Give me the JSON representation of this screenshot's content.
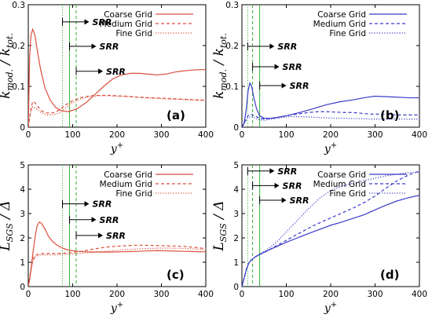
{
  "chart_data": [
    {
      "id": "a",
      "type": "line",
      "panel_label": "(a)",
      "xlabel": "y",
      "xlabel_sup": "+",
      "ylabel_main": "k",
      "ylabel_sub": "mod.",
      "ylabel_denom": "k",
      "ylabel_denom_sub": "tot.",
      "xlim": [
        0,
        400
      ],
      "ylim": [
        0,
        0.3
      ],
      "xticks": [
        0,
        100,
        200,
        300,
        400
      ],
      "yticks": [
        0,
        0.1,
        0.2,
        0.3
      ],
      "xtick_labels": [
        "0",
        "100",
        "200",
        "300",
        "400"
      ],
      "ytick_labels": [
        "0",
        "0.1",
        "0.2",
        "0.3"
      ],
      "grid": false,
      "legend": "top-right",
      "color": "#d94f3c",
      "series": [
        {
          "name": "Coarse Grid",
          "dash": "solid",
          "x": [
            0,
            3,
            6,
            10,
            15,
            20,
            28,
            38,
            50,
            62,
            75,
            90,
            110,
            130,
            150,
            170,
            190,
            210,
            230,
            250,
            270,
            290,
            310,
            330,
            350,
            370,
            390,
            400
          ],
          "y": [
            0.0,
            0.17,
            0.225,
            0.24,
            0.225,
            0.19,
            0.14,
            0.095,
            0.065,
            0.048,
            0.04,
            0.038,
            0.045,
            0.06,
            0.08,
            0.1,
            0.118,
            0.128,
            0.132,
            0.132,
            0.13,
            0.128,
            0.13,
            0.135,
            0.138,
            0.14,
            0.141,
            0.141
          ]
        },
        {
          "name": "Medium Grid",
          "dash": "dashed",
          "x": [
            0,
            5,
            10,
            15,
            20,
            30,
            40,
            55,
            70,
            85,
            100,
            120,
            140,
            160,
            180,
            200,
            220,
            240,
            260,
            280,
            300,
            320,
            340,
            360,
            380,
            400
          ],
          "y": [
            0.0,
            0.04,
            0.063,
            0.06,
            0.052,
            0.04,
            0.035,
            0.035,
            0.042,
            0.055,
            0.065,
            0.073,
            0.077,
            0.078,
            0.078,
            0.077,
            0.076,
            0.074,
            0.073,
            0.072,
            0.071,
            0.07,
            0.069,
            0.068,
            0.067,
            0.066
          ]
        },
        {
          "name": "Fine Grid",
          "dash": "dotted",
          "x": [
            0,
            5,
            10,
            15,
            20,
            30,
            40,
            55,
            70,
            85,
            100,
            120,
            140,
            160,
            180,
            200,
            220,
            240,
            260,
            280,
            300,
            320,
            340,
            360,
            380,
            400
          ],
          "y": [
            0.0,
            0.035,
            0.05,
            0.048,
            0.043,
            0.035,
            0.03,
            0.03,
            0.035,
            0.048,
            0.06,
            0.07,
            0.075,
            0.077,
            0.077,
            0.076,
            0.075,
            0.074,
            0.072,
            0.071,
            0.07,
            0.069,
            0.068,
            0.067,
            0.066,
            0.065
          ]
        }
      ],
      "vlines": [
        {
          "x": 77,
          "style": "dotted"
        },
        {
          "x": 93,
          "style": "solid"
        },
        {
          "x": 108,
          "style": "dashed"
        }
      ],
      "annotations": [
        {
          "text": "SRR",
          "arrow_from_x": 77,
          "y": 0.258
        },
        {
          "text": "SRR",
          "arrow_from_x": 93,
          "y": 0.198
        },
        {
          "text": "SRR",
          "arrow_from_x": 108,
          "y": 0.137
        }
      ]
    },
    {
      "id": "b",
      "type": "line",
      "panel_label": "(b)",
      "xlabel": "y",
      "xlabel_sup": "+",
      "ylabel_main": "k",
      "ylabel_sub": "mod.",
      "ylabel_denom": "k",
      "ylabel_denom_sub": "tot.",
      "xlim": [
        0,
        400
      ],
      "ylim": [
        0,
        0.3
      ],
      "xticks": [
        0,
        100,
        200,
        300,
        400
      ],
      "yticks": [
        0,
        0.1,
        0.2,
        0.3
      ],
      "xtick_labels": [
        "0",
        "100",
        "200",
        "300",
        "400"
      ],
      "ytick_labels": [
        "0",
        "0.1",
        "0.2",
        "0.3"
      ],
      "grid": false,
      "legend": "top-right",
      "color": "#3a3ac8",
      "series": [
        {
          "name": "Coarse Grid",
          "dash": "solid",
          "x": [
            0,
            5,
            10,
            14,
            18,
            22,
            27,
            33,
            40,
            50,
            65,
            80,
            100,
            130,
            160,
            190,
            220,
            250,
            280,
            300,
            320,
            340,
            360,
            380,
            400
          ],
          "y": [
            0.0,
            0.01,
            0.045,
            0.09,
            0.108,
            0.1,
            0.072,
            0.045,
            0.028,
            0.022,
            0.022,
            0.024,
            0.028,
            0.036,
            0.045,
            0.055,
            0.062,
            0.067,
            0.073,
            0.076,
            0.075,
            0.074,
            0.073,
            0.072,
            0.072
          ]
        },
        {
          "name": "Medium Grid",
          "dash": "dashed",
          "x": [
            0,
            5,
            10,
            15,
            20,
            25,
            30,
            40,
            50,
            70,
            90,
            110,
            130,
            150,
            170,
            190,
            210,
            230,
            250,
            270,
            290,
            310,
            330,
            350,
            370,
            400
          ],
          "y": [
            0.0,
            0.01,
            0.022,
            0.03,
            0.032,
            0.03,
            0.027,
            0.022,
            0.02,
            0.022,
            0.026,
            0.03,
            0.033,
            0.036,
            0.038,
            0.038,
            0.037,
            0.036,
            0.036,
            0.034,
            0.032,
            0.032,
            0.031,
            0.03,
            0.03,
            0.03
          ]
        },
        {
          "name": "Fine Grid",
          "dash": "dotted",
          "x": [
            0,
            5,
            10,
            15,
            20,
            25,
            30,
            40,
            50,
            70,
            90,
            110,
            130,
            150,
            170,
            190,
            210,
            230,
            250,
            270,
            290,
            310,
            330,
            350,
            370,
            400
          ],
          "y": [
            0.0,
            0.008,
            0.018,
            0.024,
            0.026,
            0.025,
            0.022,
            0.018,
            0.017,
            0.02,
            0.024,
            0.026,
            0.026,
            0.025,
            0.024,
            0.023,
            0.022,
            0.022,
            0.021,
            0.021,
            0.02,
            0.02,
            0.02,
            0.02,
            0.02,
            0.02
          ]
        }
      ],
      "vlines": [
        {
          "x": 13,
          "style": "dotted"
        },
        {
          "x": 24,
          "style": "dashed"
        },
        {
          "x": 40,
          "style": "solid"
        }
      ],
      "annotations": [
        {
          "text": "SRR",
          "arrow_from_x": 13,
          "y": 0.198
        },
        {
          "text": "SRR",
          "arrow_from_x": 24,
          "y": 0.148
        },
        {
          "text": "SRR",
          "arrow_from_x": 40,
          "y": 0.102
        }
      ]
    },
    {
      "id": "c",
      "type": "line",
      "panel_label": "(c)",
      "xlabel": "y",
      "xlabel_sup": "+",
      "ylabel_main": "L",
      "ylabel_sub": "SGS",
      "ylabel_denom": "Δ",
      "ylabel_denom_sub": "",
      "xlim": [
        0,
        400
      ],
      "ylim": [
        0,
        5
      ],
      "xticks": [
        0,
        100,
        200,
        300,
        400
      ],
      "yticks": [
        0,
        1,
        2,
        3,
        4,
        5
      ],
      "xtick_labels": [
        "0",
        "100",
        "200",
        "300",
        "400"
      ],
      "ytick_labels": [
        "0",
        "1",
        "2",
        "3",
        "4",
        "5"
      ],
      "grid": false,
      "legend": "top-right",
      "color": "#d94f3c",
      "series": [
        {
          "name": "Coarse Grid",
          "dash": "solid",
          "x": [
            0,
            4,
            8,
            12,
            16,
            20,
            25,
            30,
            38,
            46,
            55,
            65,
            75,
            90,
            110,
            130,
            150,
            170,
            190,
            210,
            230,
            250,
            270,
            290,
            310,
            330,
            350,
            370,
            390,
            400
          ],
          "y": [
            0.0,
            0.4,
            1.0,
            1.6,
            2.1,
            2.5,
            2.65,
            2.6,
            2.35,
            2.05,
            1.85,
            1.7,
            1.6,
            1.5,
            1.45,
            1.43,
            1.42,
            1.42,
            1.42,
            1.43,
            1.44,
            1.45,
            1.47,
            1.48,
            1.47,
            1.46,
            1.45,
            1.44,
            1.43,
            1.43
          ]
        },
        {
          "name": "Medium Grid",
          "dash": "dashed",
          "x": [
            0,
            5,
            10,
            15,
            20,
            30,
            45,
            60,
            80,
            100,
            120,
            140,
            160,
            180,
            200,
            220,
            240,
            260,
            280,
            300,
            320,
            340,
            360,
            380,
            400
          ],
          "y": [
            0.0,
            0.6,
            1.1,
            1.28,
            1.32,
            1.35,
            1.36,
            1.36,
            1.37,
            1.4,
            1.45,
            1.52,
            1.58,
            1.63,
            1.66,
            1.68,
            1.7,
            1.7,
            1.69,
            1.68,
            1.67,
            1.66,
            1.64,
            1.6,
            1.56
          ]
        },
        {
          "name": "Fine Grid",
          "dash": "dotted",
          "x": [
            0,
            5,
            10,
            15,
            20,
            30,
            45,
            60,
            80,
            100,
            120,
            140,
            160,
            180,
            200,
            220,
            240,
            260,
            280,
            300,
            320,
            340,
            360,
            380,
            400
          ],
          "y": [
            0.0,
            0.5,
            1.0,
            1.2,
            1.26,
            1.3,
            1.3,
            1.3,
            1.32,
            1.34,
            1.37,
            1.4,
            1.43,
            1.46,
            1.49,
            1.52,
            1.54,
            1.56,
            1.57,
            1.58,
            1.58,
            1.57,
            1.56,
            1.54,
            1.52
          ]
        }
      ],
      "vlines": [
        {
          "x": 77,
          "style": "dotted"
        },
        {
          "x": 93,
          "style": "solid"
        },
        {
          "x": 108,
          "style": "dashed"
        }
      ],
      "annotations": [
        {
          "text": "SRR",
          "arrow_from_x": 77,
          "y": 3.4
        },
        {
          "text": "SRR",
          "arrow_from_x": 93,
          "y": 2.75
        },
        {
          "text": "SRR",
          "arrow_from_x": 108,
          "y": 2.1
        }
      ]
    },
    {
      "id": "d",
      "type": "line",
      "panel_label": "(d)",
      "xlabel": "y",
      "xlabel_sup": "+",
      "ylabel_main": "L",
      "ylabel_sub": "SGS",
      "ylabel_denom": "Δ",
      "ylabel_denom_sub": "",
      "xlim": [
        0,
        400
      ],
      "ylim": [
        0,
        5
      ],
      "xticks": [
        0,
        100,
        200,
        300,
        400
      ],
      "yticks": [
        0,
        1,
        2,
        3,
        4,
        5
      ],
      "xtick_labels": [
        "0",
        "100",
        "200",
        "300",
        "400"
      ],
      "ytick_labels": [
        "0",
        "1",
        "2",
        "3",
        "4",
        "5"
      ],
      "grid": false,
      "legend": "top-right",
      "color": "#3a3ac8",
      "series": [
        {
          "name": "Coarse Grid",
          "dash": "solid",
          "x": [
            0,
            5,
            10,
            15,
            20,
            30,
            40,
            55,
            70,
            85,
            100,
            125,
            150,
            175,
            200,
            225,
            250,
            275,
            300,
            325,
            350,
            375,
            400
          ],
          "y": [
            0.0,
            0.35,
            0.7,
            0.95,
            1.08,
            1.22,
            1.32,
            1.45,
            1.58,
            1.7,
            1.82,
            2.0,
            2.18,
            2.35,
            2.52,
            2.65,
            2.8,
            2.95,
            3.15,
            3.35,
            3.52,
            3.65,
            3.75
          ]
        },
        {
          "name": "Medium Grid",
          "dash": "dashed",
          "x": [
            0,
            5,
            10,
            15,
            20,
            30,
            40,
            55,
            70,
            85,
            100,
            125,
            150,
            175,
            200,
            225,
            250,
            275,
            300,
            325,
            350,
            375,
            400
          ],
          "y": [
            0.0,
            0.35,
            0.7,
            0.95,
            1.08,
            1.22,
            1.32,
            1.45,
            1.6,
            1.75,
            1.9,
            2.15,
            2.4,
            2.62,
            2.82,
            3.02,
            3.22,
            3.45,
            3.72,
            4.05,
            4.35,
            4.58,
            4.75
          ]
        },
        {
          "name": "Fine Grid",
          "dash": "dotted",
          "x": [
            0,
            5,
            10,
            15,
            20,
            30,
            40,
            55,
            70,
            85,
            100,
            125,
            150,
            175,
            200,
            225,
            250,
            275,
            300,
            325,
            350,
            375,
            400
          ],
          "y": [
            0.0,
            0.35,
            0.7,
            0.95,
            1.08,
            1.22,
            1.34,
            1.5,
            1.7,
            1.95,
            2.25,
            2.72,
            3.2,
            3.62,
            3.95,
            4.12,
            4.25,
            4.35,
            4.45,
            4.55,
            4.62,
            4.68,
            4.7
          ]
        }
      ],
      "vlines": [
        {
          "x": 13,
          "style": "dotted"
        },
        {
          "x": 24,
          "style": "dashed"
        },
        {
          "x": 40,
          "style": "solid"
        }
      ],
      "annotations": [
        {
          "text": "SRR",
          "arrow_from_x": 13,
          "y": 4.75
        },
        {
          "text": "SRR",
          "arrow_from_x": 24,
          "y": 4.15
        },
        {
          "text": "SRR",
          "arrow_from_x": 40,
          "y": 3.55
        }
      ]
    }
  ],
  "colors": {
    "red_series": "#d94f3c",
    "blue_series": "#3a3ac8",
    "srr_line": "#33b233"
  }
}
